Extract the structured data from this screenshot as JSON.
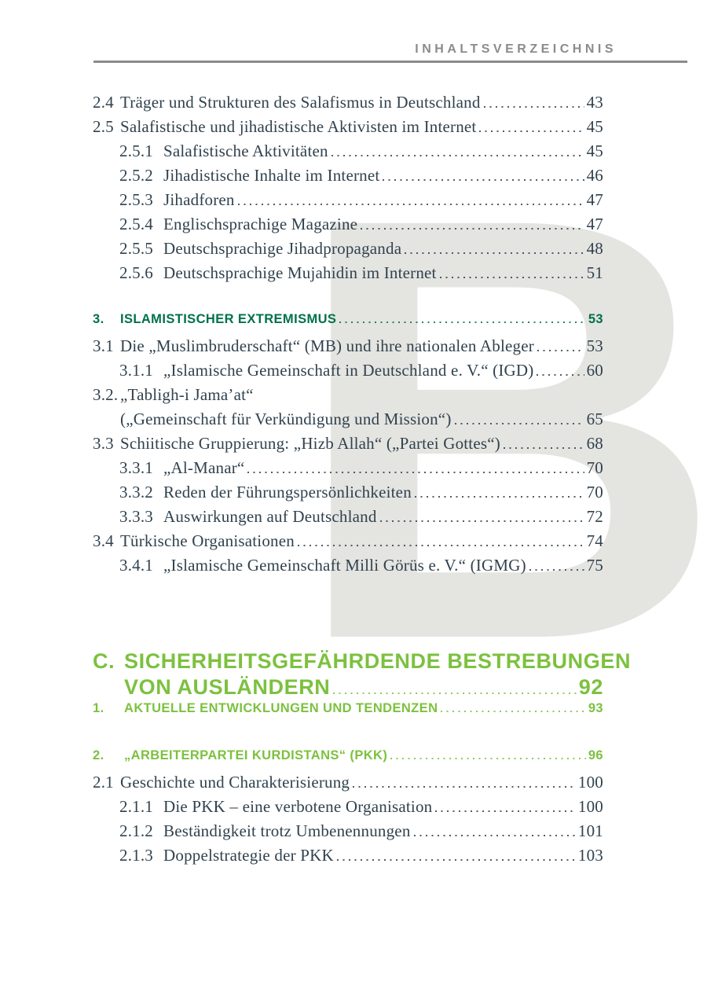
{
  "header": {
    "title": "INHALTSVERZEICHNIS"
  },
  "watermark": {
    "letter": "B"
  },
  "colors": {
    "body_text": "#31424e",
    "dark_green": "#00714a",
    "bright_green": "#7cc13f",
    "header_gray": "#8b8b8b",
    "watermark_gray": "#e4e4e1"
  },
  "toc": {
    "entries": [
      {
        "num": "2.4",
        "text": "Träger und Strukturen des Salafismus in Deutschland",
        "page": "43"
      },
      {
        "num": "2.5",
        "text": "Salafistische und jihadistische Aktivisten im Internet",
        "page": "45"
      },
      {
        "num": "2.5.1",
        "text": "Salafistische Aktivitäten",
        "page": "45"
      },
      {
        "num": "2.5.2",
        "text": "Jihadistische Inhalte im Internet",
        "page": "46"
      },
      {
        "num": "2.5.3",
        "text": "Jihadforen",
        "page": "47"
      },
      {
        "num": "2.5.4",
        "text": "Englischsprachige Magazine",
        "page": "47"
      },
      {
        "num": "2.5.5",
        "text": "Deutschsprachige Jihadpropaganda",
        "page": "48"
      },
      {
        "num": "2.5.6",
        "text": "Deutschsprachige Mujahidin im Internet",
        "page": "51"
      },
      {
        "num": "3.",
        "text": "ISLAMISTISCHER EXTREMISMUS",
        "page": "53"
      },
      {
        "num": "3.1",
        "text": "Die „Muslimbruderschaft“ (MB) und ihre nationalen Ableger",
        "page": "53"
      },
      {
        "num": "3.1.1",
        "text": "„Islamische Gemeinschaft in Deutschland e. V.“ (IGD)",
        "page": "60"
      },
      {
        "num": "3.2.",
        "text": "„Tabligh-i Jama’at“",
        "page": ""
      },
      {
        "num": "",
        "text": "(„Gemeinschaft für Verkündigung und Mission“)",
        "page": "65"
      },
      {
        "num": "3.3",
        "text": "Schiitische Gruppierung: „Hizb Allah“ („Partei Gottes“)",
        "page": "68"
      },
      {
        "num": "3.3.1",
        "text": "„Al-Manar“",
        "page": "70"
      },
      {
        "num": "3.3.2",
        "text": "Reden der Führungspersönlichkeiten",
        "page": "70"
      },
      {
        "num": "3.3.3",
        "text": "Auswirkungen auf Deutschland",
        "page": "72"
      },
      {
        "num": "3.4",
        "text": "Türkische Organisationen",
        "page": "74"
      },
      {
        "num": "3.4.1",
        "text": "„Islamische Gemeinschaft Milli Görüs e. V.“ (IGMG)",
        "page": "75"
      },
      {
        "num": "C.",
        "text": "SICHERHEITSGEFÄHRDENDE BESTREBUNGEN",
        "page": ""
      },
      {
        "num": "",
        "text": "VON AUSLÄNDERN",
        "page": "92"
      },
      {
        "num": "1.",
        "text": "AKTUELLE ENTWICKLUNGEN UND TENDENZEN",
        "page": "93"
      },
      {
        "num": "2.",
        "text": "„ARBEITERPARTEI KURDISTANS“ (PKK)",
        "page": "96"
      },
      {
        "num": "2.1",
        "text": "Geschichte und Charakterisierung",
        "page": "100"
      },
      {
        "num": "2.1.1",
        "text": "Die PKK – eine verbotene Organisation",
        "page": "100"
      },
      {
        "num": "2.1.2",
        "text": "Beständigkeit trotz Umbenennungen",
        "page": "101"
      },
      {
        "num": "2.1.3",
        "text": "Doppelstrategie der PKK",
        "page": "103"
      }
    ]
  }
}
